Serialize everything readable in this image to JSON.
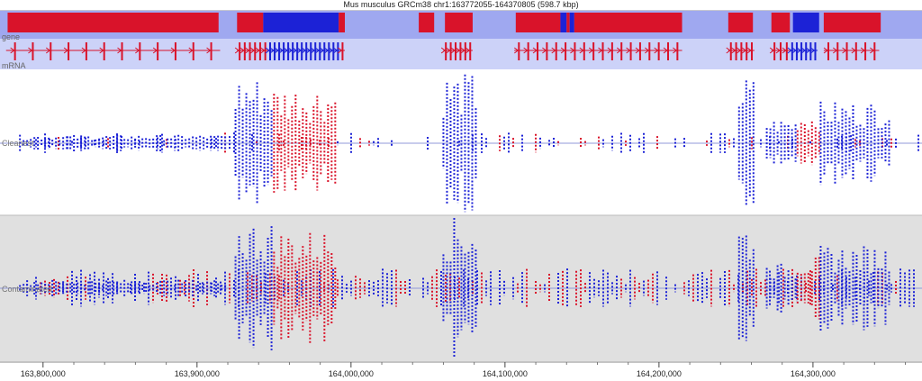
{
  "title": "Mus musculus GRCm38 chr1:163772055-164370805 (598.7 kbp)",
  "tracks": {
    "gene_label": "gene",
    "mrna_label": "mRNA",
    "cleanest_label": "Cleanest",
    "contaminated_label": "Contaminated"
  },
  "colors": {
    "gene_track_bg": "#9fa8f0",
    "mrna_track_bg": "#ccd2f8",
    "red": "#d9132a",
    "blue": "#1c22d6",
    "cleanest_bg": "#ffffff",
    "contaminated_bg": "#e0e0e0"
  },
  "axis": {
    "start": 163772055,
    "end": 164370805,
    "ticks": [
      {
        "pos": 163800000,
        "label": "163,800,000"
      },
      {
        "pos": 163900000,
        "label": "163,900,000"
      },
      {
        "pos": 164000000,
        "label": "164,000,000"
      },
      {
        "pos": 164100000,
        "label": "164,100,000"
      },
      {
        "pos": 164200000,
        "label": "164,200,000"
      },
      {
        "pos": 164300000,
        "label": "164,300,000"
      }
    ]
  },
  "genes": [
    {
      "start": 163777000,
      "end": 163914000,
      "color": "red"
    },
    {
      "start": 163926000,
      "end": 163943000,
      "color": "red"
    },
    {
      "start": 163943000,
      "end": 163992000,
      "color": "blue"
    },
    {
      "start": 163992000,
      "end": 163996000,
      "color": "red"
    },
    {
      "start": 164044000,
      "end": 164054000,
      "color": "red"
    },
    {
      "start": 164061000,
      "end": 164079000,
      "color": "red"
    },
    {
      "start": 164107000,
      "end": 164136000,
      "color": "red"
    },
    {
      "start": 164136000,
      "end": 164140000,
      "color": "blue"
    },
    {
      "start": 164140000,
      "end": 164142000,
      "color": "red"
    },
    {
      "start": 164142000,
      "end": 164145000,
      "color": "blue"
    },
    {
      "start": 164145000,
      "end": 164215000,
      "color": "red"
    },
    {
      "start": 164245000,
      "end": 164261000,
      "color": "red"
    },
    {
      "start": 164273000,
      "end": 164285000,
      "color": "red"
    },
    {
      "start": 164287000,
      "end": 164304000,
      "color": "blue"
    },
    {
      "start": 164307000,
      "end": 164344000,
      "color": "red"
    }
  ],
  "transcripts": [
    {
      "start": 163776000,
      "end": 163915000,
      "color": "red",
      "exons": 12
    },
    {
      "start": 163926000,
      "end": 163946000,
      "color": "red",
      "exons": 6
    },
    {
      "start": 163946000,
      "end": 163993000,
      "color": "blue",
      "exons": 16
    },
    {
      "start": 163993000,
      "end": 163996000,
      "color": "red",
      "exons": 1
    },
    {
      "start": 164060000,
      "end": 164079000,
      "color": "red",
      "exons": 6
    },
    {
      "start": 164106000,
      "end": 164215000,
      "color": "red",
      "exons": 18
    },
    {
      "start": 164245000,
      "end": 164262000,
      "color": "red",
      "exons": 5
    },
    {
      "start": 164273000,
      "end": 164285000,
      "color": "red",
      "exons": 3
    },
    {
      "start": 164285000,
      "end": 164303000,
      "color": "blue",
      "exons": 6
    },
    {
      "start": 164307000,
      "end": 164343000,
      "color": "red",
      "exons": 6
    }
  ],
  "coverage_regions": [
    {
      "start": 163925000,
      "end": 163950000,
      "color": "blue",
      "height": 0.95
    },
    {
      "start": 163950000,
      "end": 163990000,
      "color": "red",
      "height": 0.82
    },
    {
      "start": 164060000,
      "end": 164083000,
      "color": "blue",
      "height": 1.0
    },
    {
      "start": 164252000,
      "end": 164263000,
      "color": "blue",
      "height": 0.95
    },
    {
      "start": 164270000,
      "end": 164290000,
      "color": "blue",
      "height": 0.35
    },
    {
      "start": 164290000,
      "end": 164305000,
      "color": "red",
      "height": 0.45
    },
    {
      "start": 164305000,
      "end": 164350000,
      "color": "blue",
      "height": 0.6
    },
    {
      "start": 163785000,
      "end": 163920000,
      "color": "blue",
      "height": 0.12
    }
  ]
}
